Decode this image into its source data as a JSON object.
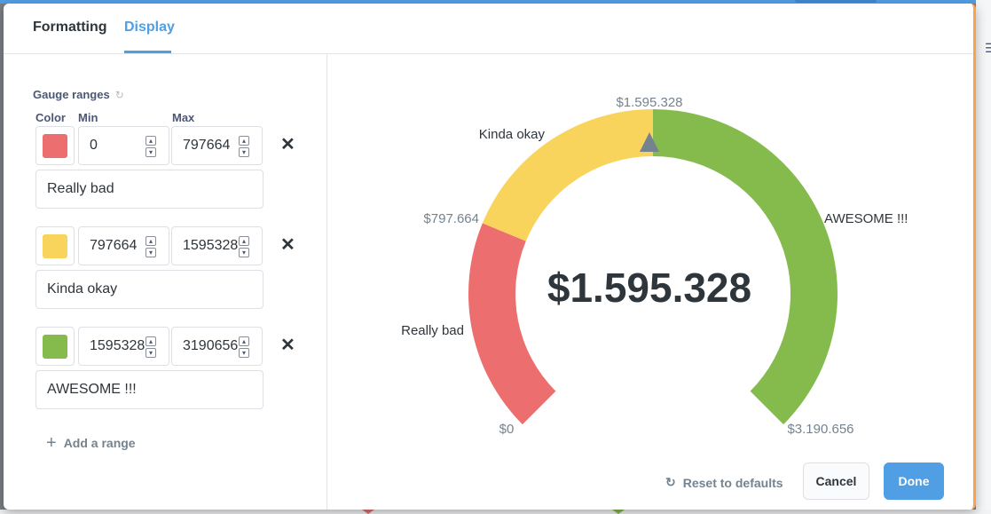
{
  "tabs": [
    {
      "label": "Formatting",
      "active": false
    },
    {
      "label": "Display",
      "active": true
    }
  ],
  "gauge_ranges": {
    "title": "Gauge ranges",
    "columns": {
      "color": "Color",
      "min": "Min",
      "max": "Max"
    },
    "ranges": [
      {
        "color": "#ed6e6e",
        "min": "0",
        "max": "797664",
        "label": "Really bad"
      },
      {
        "color": "#f9d45c",
        "min": "797664",
        "max": "1595328",
        "label": "Kinda okay"
      },
      {
        "color": "#84bb4c",
        "min": "1595328",
        "max": "3190656",
        "label": "AWESOME !!!"
      }
    ],
    "add_range_label": "Add a range"
  },
  "gauge": {
    "value_display": "$1.595.328",
    "value": 1595328,
    "min": 0,
    "max": 3190656,
    "tick_labels": {
      "start": "$0",
      "first_break": "$797.664",
      "second_break": "$1.595.328",
      "end": "$3.190.656"
    },
    "segments": [
      {
        "label": "Really bad",
        "from": 0,
        "to": 797664,
        "color": "#ed6e6e"
      },
      {
        "label": "Kinda okay",
        "from": 797664,
        "to": 1595328,
        "color": "#f9d45c"
      },
      {
        "label": "AWESOME !!!",
        "from": 1595328,
        "to": 3190656,
        "color": "#84bb4c"
      }
    ],
    "pointer_color": "#74838f"
  },
  "footer": {
    "reset_label": "Reset to defaults",
    "cancel_label": "Cancel",
    "done_label": "Done"
  },
  "colors": {
    "accent": "#509ee3",
    "text": "#2e353b",
    "muted": "#74838f"
  }
}
